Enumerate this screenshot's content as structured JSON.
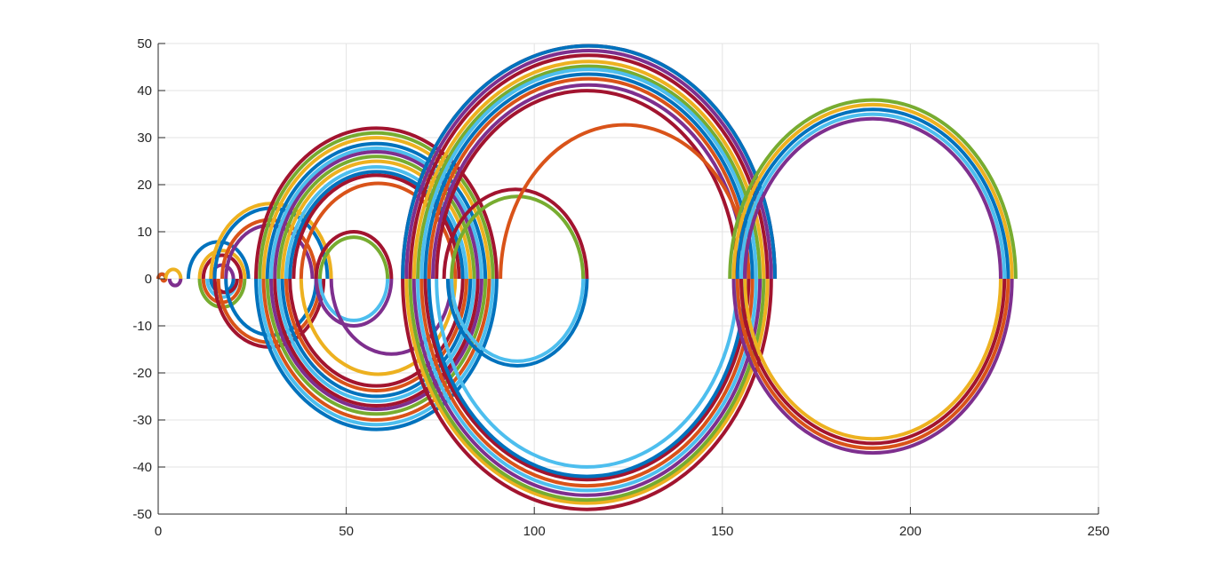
{
  "chart_data": {
    "type": "line",
    "title": "",
    "xlabel": "",
    "ylabel": "",
    "xlim": [
      0,
      250
    ],
    "ylim": [
      -50,
      50
    ],
    "grid": true,
    "x_ticks": [
      0,
      50,
      100,
      150,
      200,
      250
    ],
    "y_ticks": [
      -50,
      -40,
      -30,
      -20,
      -10,
      0,
      10,
      20,
      30,
      40,
      50
    ],
    "x_tick_labels": [
      "0",
      "50",
      "100",
      "150",
      "200",
      "250"
    ],
    "y_tick_labels": [
      "-50",
      "-40",
      "-30",
      "-20",
      "-10",
      "0",
      "10",
      "20",
      "30",
      "40",
      "50"
    ],
    "colors": {
      "blue": "#0072BD",
      "orange": "#D95319",
      "yellow": "#EDB120",
      "purple": "#7E2F8E",
      "green": "#77AC30",
      "cyan": "#4DBEEE",
      "red": "#A2142F"
    },
    "series": [
      {
        "color": "blue",
        "half": "upper",
        "x_start": 0,
        "x_end": 2
      },
      {
        "color": "orange",
        "half": "upper",
        "x_start": 0,
        "x_end": 2
      },
      {
        "color": "orange",
        "half": "lower",
        "x_start": 1,
        "x_end": 2
      },
      {
        "color": "yellow",
        "half": "upper",
        "x_start": 2,
        "x_end": 6
      },
      {
        "color": "purple",
        "half": "lower",
        "x_start": 3,
        "x_end": 6
      },
      {
        "color": "blue",
        "half": "upper",
        "x_start": 8,
        "x_end": 24
      },
      {
        "color": "green",
        "half": "lower",
        "x_start": 11,
        "x_end": 23
      },
      {
        "color": "yellow",
        "half": "upper",
        "x_start": 11,
        "x_end": 23
      },
      {
        "color": "red",
        "half": "upper",
        "x_start": 12,
        "x_end": 22
      },
      {
        "color": "orange",
        "half": "lower",
        "x_start": 12,
        "x_end": 22
      },
      {
        "color": "cyan",
        "half": "lower",
        "x_start": 13,
        "x_end": 21
      },
      {
        "color": "blue",
        "half": "lower",
        "x_start": 14,
        "x_end": 20
      },
      {
        "color": "purple",
        "half": "upper",
        "x_start": 14,
        "x_end": 20
      },
      {
        "color": "red",
        "half": "lower",
        "x_start": 15,
        "x_end": 21
      },
      {
        "color": "yellow",
        "half": "upper",
        "x_start": 14,
        "x_end": 46
      },
      {
        "color": "blue",
        "half": "upper",
        "x_start": 15,
        "x_end": 45
      },
      {
        "color": "red",
        "half": "lower",
        "x_start": 15,
        "x_end": 44
      },
      {
        "color": "orange",
        "half": "lower",
        "x_start": 16,
        "x_end": 43
      },
      {
        "color": "orange",
        "half": "upper",
        "x_start": 17,
        "x_end": 42
      },
      {
        "color": "blue",
        "half": "lower",
        "x_start": 18,
        "x_end": 42
      },
      {
        "color": "purple",
        "half": "upper",
        "x_start": 18,
        "x_end": 41
      },
      {
        "color": "red",
        "half": "upper",
        "x_start": 26,
        "x_end": 90
      },
      {
        "color": "green",
        "half": "upper",
        "x_start": 27,
        "x_end": 89
      },
      {
        "color": "yellow",
        "half": "upper",
        "x_start": 28,
        "x_end": 88
      },
      {
        "color": "blue",
        "half": "upper",
        "x_start": 29,
        "x_end": 87
      },
      {
        "color": "cyan",
        "half": "upper",
        "x_start": 30,
        "x_end": 86
      },
      {
        "color": "purple",
        "half": "upper",
        "x_start": 31,
        "x_end": 85
      },
      {
        "color": "green",
        "half": "upper",
        "x_start": 32,
        "x_end": 84
      },
      {
        "color": "yellow",
        "half": "upper",
        "x_start": 33,
        "x_end": 83
      },
      {
        "color": "cyan",
        "half": "upper",
        "x_start": 34,
        "x_end": 82
      },
      {
        "color": "blue",
        "half": "upper",
        "x_start": 35,
        "x_end": 81
      },
      {
        "color": "red",
        "half": "upper",
        "x_start": 36,
        "x_end": 80
      },
      {
        "color": "orange",
        "half": "upper",
        "x_start": 38,
        "x_end": 79
      },
      {
        "color": "blue",
        "half": "lower",
        "x_start": 26,
        "x_end": 90
      },
      {
        "color": "cyan",
        "half": "lower",
        "x_start": 27,
        "x_end": 89
      },
      {
        "color": "orange",
        "half": "lower",
        "x_start": 28,
        "x_end": 88
      },
      {
        "color": "green",
        "half": "lower",
        "x_start": 29,
        "x_end": 87
      },
      {
        "color": "purple",
        "half": "lower",
        "x_start": 30,
        "x_end": 86
      },
      {
        "color": "red",
        "half": "lower",
        "x_start": 31,
        "x_end": 85
      },
      {
        "color": "cyan",
        "half": "lower",
        "x_start": 32,
        "x_end": 84
      },
      {
        "color": "blue",
        "half": "lower",
        "x_start": 33,
        "x_end": 83
      },
      {
        "color": "orange",
        "half": "lower",
        "x_start": 34,
        "x_end": 82
      },
      {
        "color": "red",
        "half": "lower",
        "x_start": 35,
        "x_end": 81
      },
      {
        "color": "yellow",
        "half": "lower",
        "x_start": 38,
        "x_end": 79
      },
      {
        "color": "red",
        "half": "upper",
        "x_start": 42,
        "x_end": 62
      },
      {
        "color": "green",
        "half": "upper",
        "x_start": 43,
        "x_end": 61
      },
      {
        "color": "cyan",
        "half": "lower",
        "x_start": 43,
        "x_end": 61
      },
      {
        "color": "purple",
        "half": "lower",
        "x_start": 42,
        "x_end": 62
      },
      {
        "color": "purple",
        "half": "lower",
        "x_start": 46,
        "x_end": 78
      },
      {
        "color": "red",
        "half": "upper",
        "x_start": 65,
        "x_end": 164
      },
      {
        "color": "blue",
        "half": "upper",
        "x_start": 65,
        "x_end": 164
      },
      {
        "color": "purple",
        "half": "upper",
        "x_start": 66,
        "x_end": 163
      },
      {
        "color": "red",
        "half": "upper",
        "x_start": 67,
        "x_end": 162
      },
      {
        "color": "yellow",
        "half": "upper",
        "x_start": 68,
        "x_end": 161
      },
      {
        "color": "green",
        "half": "upper",
        "x_start": 69,
        "x_end": 160
      },
      {
        "color": "cyan",
        "half": "upper",
        "x_start": 70,
        "x_end": 159
      },
      {
        "color": "blue",
        "half": "upper",
        "x_start": 71,
        "x_end": 158
      },
      {
        "color": "orange",
        "half": "upper",
        "x_start": 72,
        "x_end": 157
      },
      {
        "color": "purple",
        "half": "upper",
        "x_start": 73,
        "x_end": 156
      },
      {
        "color": "red",
        "half": "upper",
        "x_start": 74,
        "x_end": 154
      },
      {
        "color": "red",
        "half": "lower",
        "x_start": 65,
        "x_end": 163
      },
      {
        "color": "yellow",
        "half": "lower",
        "x_start": 66,
        "x_end": 162
      },
      {
        "color": "green",
        "half": "lower",
        "x_start": 67,
        "x_end": 161
      },
      {
        "color": "purple",
        "half": "lower",
        "x_start": 68,
        "x_end": 160
      },
      {
        "color": "cyan",
        "half": "lower",
        "x_start": 69,
        "x_end": 159
      },
      {
        "color": "orange",
        "half": "lower",
        "x_start": 70,
        "x_end": 158
      },
      {
        "color": "red",
        "half": "lower",
        "x_start": 71,
        "x_end": 157
      },
      {
        "color": "blue",
        "half": "lower",
        "x_start": 72,
        "x_end": 156
      },
      {
        "color": "cyan",
        "half": "lower",
        "x_start": 74,
        "x_end": 154
      },
      {
        "color": "red",
        "half": "upper",
        "x_start": 76,
        "x_end": 114
      },
      {
        "color": "green",
        "half": "upper",
        "x_start": 78,
        "x_end": 113
      },
      {
        "color": "blue",
        "half": "lower",
        "x_start": 77,
        "x_end": 114
      },
      {
        "color": "cyan",
        "half": "lower",
        "x_start": 78,
        "x_end": 113
      },
      {
        "color": "orange",
        "half": "upper",
        "x_start": 91,
        "x_end": 157
      },
      {
        "color": "green",
        "half": "upper",
        "x_start": 152,
        "x_end": 228
      },
      {
        "color": "yellow",
        "half": "upper",
        "x_start": 153,
        "x_end": 227
      },
      {
        "color": "blue",
        "half": "upper",
        "x_start": 154,
        "x_end": 226
      },
      {
        "color": "cyan",
        "half": "upper",
        "x_start": 155,
        "x_end": 225
      },
      {
        "color": "purple",
        "half": "upper",
        "x_start": 156,
        "x_end": 224
      },
      {
        "color": "yellow",
        "half": "lower",
        "x_start": 156,
        "x_end": 224
      },
      {
        "color": "red",
        "half": "lower",
        "x_start": 155,
        "x_end": 225
      },
      {
        "color": "orange",
        "half": "lower",
        "x_start": 154,
        "x_end": 226
      },
      {
        "color": "purple",
        "half": "lower",
        "x_start": 153,
        "x_end": 227
      }
    ]
  }
}
